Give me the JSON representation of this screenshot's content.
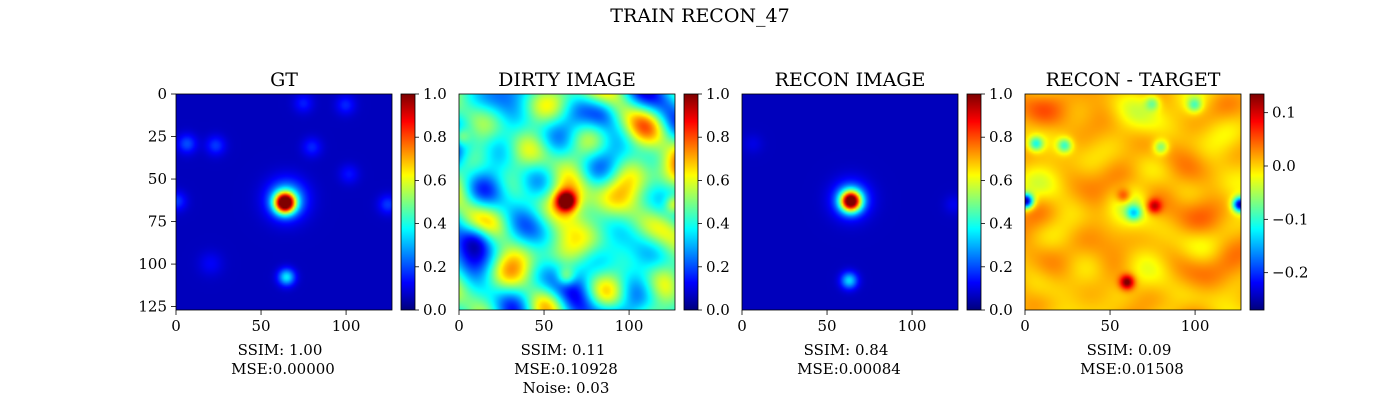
{
  "figure": {
    "title": "TRAIN RECON_47"
  },
  "colormap": {
    "name": "jet",
    "stops": [
      "#00007f",
      "#0000ff",
      "#007fff",
      "#00ffff",
      "#7fff7f",
      "#ffff00",
      "#ff7f00",
      "#ff0000",
      "#7f0000"
    ]
  },
  "chart_data": [
    {
      "type": "heatmap",
      "title": "GT",
      "x_ticks": [
        0,
        50,
        100
      ],
      "y_ticks": [
        0,
        25,
        50,
        75,
        100,
        125
      ],
      "xlim": [
        0,
        127
      ],
      "ylim": [
        127,
        0
      ],
      "colorbar": {
        "range": [
          0.0,
          1.0
        ],
        "ticks": [
          "0.0",
          "0.2",
          "0.4",
          "0.6",
          "0.8",
          "1.0"
        ]
      },
      "background_level": 0.06,
      "sources": [
        {
          "x": 64,
          "y": 64,
          "amplitude": 0.94,
          "sigma": 4.2
        },
        {
          "x": 65,
          "y": 62,
          "amplitude": 0.3,
          "sigma": 8
        },
        {
          "x": 65,
          "y": 108,
          "amplitude": 0.3,
          "sigma": 3.5
        },
        {
          "x": 6,
          "y": 29,
          "amplitude": 0.14,
          "sigma": 4
        },
        {
          "x": 23,
          "y": 30,
          "amplitude": 0.12,
          "sigma": 4
        },
        {
          "x": 80,
          "y": 31,
          "amplitude": 0.1,
          "sigma": 4
        },
        {
          "x": 100,
          "y": 6,
          "amplitude": 0.1,
          "sigma": 4
        },
        {
          "x": 75,
          "y": 5,
          "amplitude": 0.09,
          "sigma": 4
        },
        {
          "x": 0,
          "y": 63,
          "amplitude": 0.12,
          "sigma": 4
        },
        {
          "x": 125,
          "y": 65,
          "amplitude": 0.12,
          "sigma": 4
        },
        {
          "x": 102,
          "y": 47,
          "amplitude": 0.08,
          "sigma": 4
        },
        {
          "x": 20,
          "y": 100,
          "amplitude": 0.06,
          "sigma": 5
        }
      ],
      "metrics": [
        "SSIM: 1.00",
        "MSE:0.00000"
      ]
    },
    {
      "type": "heatmap",
      "title": "DIRTY IMAGE",
      "x_ticks": [
        0,
        50,
        100
      ],
      "xlim": [
        0,
        127
      ],
      "ylim": [
        127,
        0
      ],
      "colorbar": {
        "range": [
          0.0,
          1.0
        ],
        "ticks": [
          "0.0",
          "0.2",
          "0.4",
          "0.6",
          "0.8",
          "1.0"
        ]
      },
      "background_level": 0.42,
      "noise_amplitude": 0.17,
      "sources": [
        {
          "x": 63,
          "y": 63,
          "amplitude": 0.55,
          "sigma": 4
        },
        {
          "x": 63,
          "y": 62,
          "amplitude": 0.2,
          "sigma": 9
        },
        {
          "x": 63,
          "y": 108,
          "amplitude": 0.25,
          "sigma": 4
        },
        {
          "x": 0,
          "y": 25,
          "amplitude": 0.25,
          "sigma": 4
        },
        {
          "x": 127,
          "y": 65,
          "amplitude": 0.3,
          "sigma": 4
        },
        {
          "x": 10,
          "y": 85,
          "amplitude": -0.18,
          "sigma": 6
        },
        {
          "x": 85,
          "y": 10,
          "amplitude": -0.12,
          "sigma": 6
        }
      ],
      "metrics": [
        "SSIM: 0.11",
        "MSE:0.10928",
        "Noise: 0.03"
      ]
    },
    {
      "type": "heatmap",
      "title": "RECON IMAGE",
      "x_ticks": [
        0,
        50,
        100
      ],
      "xlim": [
        0,
        127
      ],
      "ylim": [
        127,
        0
      ],
      "colorbar": {
        "range": [
          0.0,
          1.0
        ],
        "ticks": [
          "0.0",
          "0.2",
          "0.4",
          "0.6",
          "0.8",
          "1.0"
        ]
      },
      "background_level": 0.06,
      "sources": [
        {
          "x": 64,
          "y": 63,
          "amplitude": 0.88,
          "sigma": 4.2
        },
        {
          "x": 64,
          "y": 62,
          "amplitude": 0.25,
          "sigma": 7.5
        },
        {
          "x": 63,
          "y": 110,
          "amplitude": 0.28,
          "sigma": 3.5
        },
        {
          "x": 125,
          "y": 65,
          "amplitude": 0.05,
          "sigma": 4
        },
        {
          "x": 6,
          "y": 29,
          "amplitude": 0.04,
          "sigma": 4
        }
      ],
      "metrics": [
        "SSIM: 0.84",
        "MSE:0.00084"
      ]
    },
    {
      "type": "heatmap",
      "title": "RECON - TARGET",
      "x_ticks": [
        0,
        50,
        100
      ],
      "xlim": [
        0,
        127
      ],
      "ylim": [
        127,
        0
      ],
      "colorbar": {
        "range": [
          -0.27,
          0.135
        ],
        "ticks": [
          "0.1",
          "0.0",
          "−0.1",
          "−0.2"
        ],
        "tick_values": [
          0.1,
          0.0,
          -0.1,
          -0.2
        ]
      },
      "background_level": 0.01,
      "noise_amplitude": 0.02,
      "sources": [
        {
          "x": 60,
          "y": 111,
          "amplitude": 0.14,
          "sigma": 3
        },
        {
          "x": 76,
          "y": 66,
          "amplitude": 0.1,
          "sigma": 3
        },
        {
          "x": 58,
          "y": 60,
          "amplitude": 0.07,
          "sigma": 3
        },
        {
          "x": 64,
          "y": 70,
          "amplitude": -0.1,
          "sigma": 3
        },
        {
          "x": 64,
          "y": 64,
          "amplitude": -0.05,
          "sigma": 9
        },
        {
          "x": 0,
          "y": 63,
          "amplitude": -0.26,
          "sigma": 3
        },
        {
          "x": 127,
          "y": 65,
          "amplitude": -0.25,
          "sigma": 3
        },
        {
          "x": 6,
          "y": 29,
          "amplitude": -0.11,
          "sigma": 3
        },
        {
          "x": 23,
          "y": 30,
          "amplitude": -0.1,
          "sigma": 3
        },
        {
          "x": 80,
          "y": 31,
          "amplitude": -0.08,
          "sigma": 3
        },
        {
          "x": 100,
          "y": 6,
          "amplitude": -0.08,
          "sigma": 3
        },
        {
          "x": 75,
          "y": 5,
          "amplitude": -0.07,
          "sigma": 3
        }
      ],
      "metrics": [
        "SSIM: 0.09",
        "MSE:0.01508"
      ]
    }
  ]
}
